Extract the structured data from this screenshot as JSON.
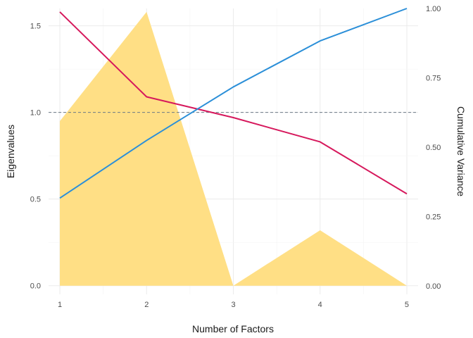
{
  "chart_data": {
    "type": "line",
    "title": "",
    "xlabel": "Number of Factors",
    "ylabel_left": "Eigenvalues",
    "ylabel_right": "Cumulative Variance",
    "x": [
      1,
      2,
      3,
      4,
      5
    ],
    "xlim": [
      0.87,
      5.13
    ],
    "ylim_left": [
      -0.05,
      1.6
    ],
    "ylim_right": [
      -0.031,
      1.0
    ],
    "x_ticks": [
      "1",
      "2",
      "3",
      "4",
      "5"
    ],
    "y_ticks_left": [
      "0.0",
      "0.5",
      "1.0",
      "1.5"
    ],
    "y_ticks_right": [
      "0.00",
      "0.25",
      "0.50",
      "0.75",
      "1.00"
    ],
    "reference_line": {
      "y": 1.0,
      "style": "dashed",
      "axis": "left"
    },
    "grid": true,
    "series": [
      {
        "kind": "area",
        "axis": "left",
        "color": "#ffdf85",
        "values": [
          0.95,
          1.58,
          0.0,
          0.32,
          0.0
        ]
      },
      {
        "kind": "line",
        "axis": "left",
        "color": "#d6185c",
        "values": [
          1.58,
          1.09,
          0.97,
          0.83,
          0.53
        ]
      },
      {
        "kind": "line",
        "axis": "right",
        "color": "#2b8fd8",
        "values": [
          0.316,
          0.524,
          0.717,
          0.883,
          1.0
        ]
      }
    ]
  }
}
